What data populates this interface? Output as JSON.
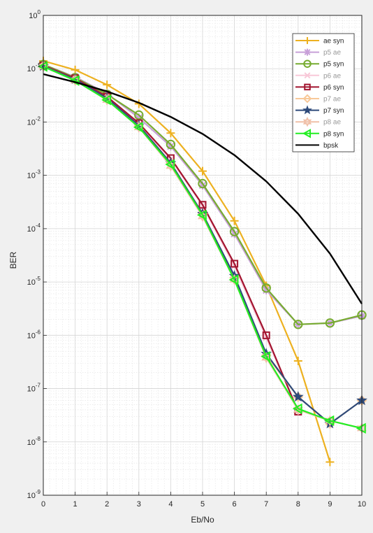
{
  "chart_data": {
    "type": "line",
    "xlabel": "Eb/No",
    "ylabel": "BER",
    "xlim": [
      0,
      10
    ],
    "ylim": [
      1e-09,
      1
    ],
    "yscale": "log",
    "grid": true,
    "minor_grid": true,
    "legend_position": "top-right",
    "x_ticks": [
      "0",
      "1",
      "2",
      "3",
      "4",
      "5",
      "6",
      "7",
      "8",
      "9",
      "10"
    ],
    "y_tick_exponents": [
      "0",
      "-1",
      "-2",
      "-3",
      "-4",
      "-5",
      "-6",
      "-7",
      "-8",
      "-9"
    ],
    "y_tick_base": "10",
    "x": [
      0,
      1,
      2,
      3,
      4,
      5,
      6,
      7,
      8,
      9,
      10
    ],
    "series": [
      {
        "name": "ae syn",
        "color": "#EDB120",
        "marker": "plus",
        "dim": false,
        "values": [
          0.14,
          0.095,
          0.05,
          0.022,
          0.0062,
          0.0012,
          0.00014,
          8.5e-06,
          3.3e-07,
          4.2e-09,
          null
        ]
      },
      {
        "name": "p5 ae",
        "color": "#C8A0D8",
        "marker": "asterisk",
        "dim": true,
        "values": [
          0.12,
          0.07,
          0.034,
          0.012,
          0.0035,
          0.00065,
          8e-05,
          7e-06,
          1.6e-06,
          1.7e-06,
          2.3e-06
        ]
      },
      {
        "name": "p5 syn",
        "color": "#77AC30",
        "marker": "circle",
        "dim": false,
        "values": [
          0.12,
          0.068,
          0.033,
          0.0135,
          0.0038,
          0.0007,
          8.8e-05,
          7.7e-06,
          1.6e-06,
          1.7e-06,
          2.4e-06
        ]
      },
      {
        "name": "p6 ae",
        "color": "#F8C8D8",
        "marker": "cross",
        "dim": true,
        "values": [
          0.115,
          0.065,
          0.03,
          0.009,
          0.002,
          0.00027,
          2e-05,
          9e-07,
          3.8e-08,
          null,
          null
        ]
      },
      {
        "name": "p6 syn",
        "color": "#A2142F",
        "marker": "square",
        "dim": false,
        "values": [
          0.115,
          0.066,
          0.03,
          0.0095,
          0.0021,
          0.00028,
          2.2e-05,
          1e-06,
          3.7e-08,
          null,
          null
        ]
      },
      {
        "name": "p7 ae",
        "color": "#F8C898",
        "marker": "diamond",
        "dim": true,
        "values": [
          0.112,
          0.063,
          0.028,
          0.0085,
          0.0017,
          0.00019,
          1.2e-05,
          4.2e-07,
          7e-08,
          2.2e-08,
          6e-08
        ]
      },
      {
        "name": "p7 syn",
        "color": "#2E4A7A",
        "marker": "star",
        "dim": false,
        "values": [
          0.112,
          0.063,
          0.028,
          0.0086,
          0.0017,
          0.00019,
          1.3e-05,
          4.5e-07,
          7e-08,
          2.2e-08,
          6e-08
        ]
      },
      {
        "name": "p8 ae",
        "color": "#F0C0A8",
        "marker": "hexagram",
        "dim": true,
        "values": [
          0.11,
          0.06,
          0.026,
          0.008,
          0.0015,
          0.00017,
          1.1e-05,
          3.8e-07,
          4e-08,
          2.5e-08,
          1.8e-08
        ]
      },
      {
        "name": "p8 syn",
        "color": "#22EE22",
        "marker": "triangle-left",
        "dim": false,
        "values": [
          0.11,
          0.06,
          0.026,
          0.008,
          0.0016,
          0.00018,
          1.1e-05,
          4e-07,
          4.2e-08,
          2.5e-08,
          1.8e-08
        ]
      },
      {
        "name": "bpsk",
        "color": "#000000",
        "marker": "none",
        "dim": false,
        "values": [
          0.079,
          0.056,
          0.0375,
          0.023,
          0.0125,
          0.006,
          0.0024,
          0.00077,
          0.00019,
          3.4e-05,
          3.9e-06
        ]
      }
    ]
  }
}
